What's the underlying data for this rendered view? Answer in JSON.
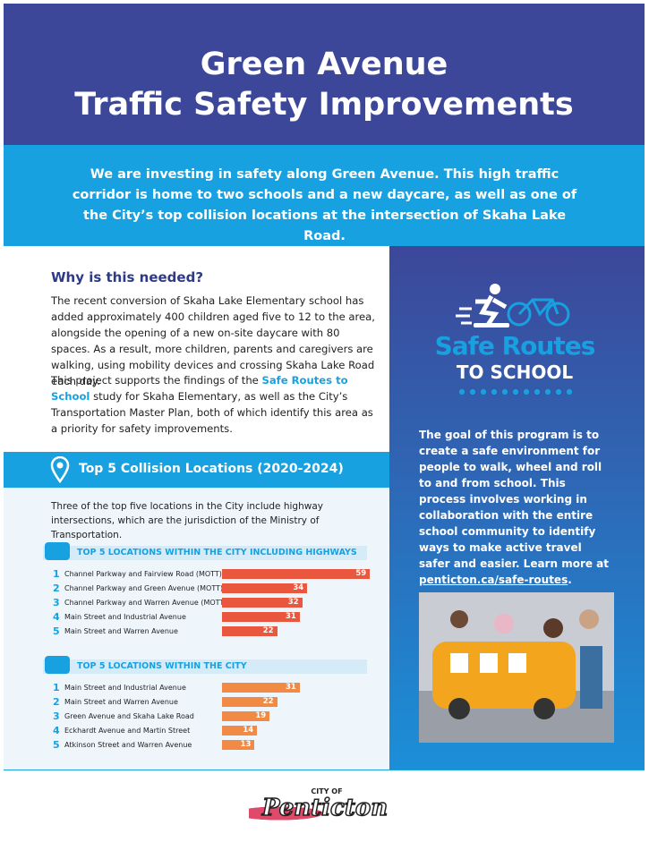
{
  "header": {
    "title_lines": [
      "Green Avenue",
      "Traffic Safety Improvements"
    ]
  },
  "intro": "We are investing in safety along Green Avenue. This high traffic corridor is home to two schools and a new daycare, as well as one of the City’s top collision locations at the intersection of Skaha Lake Road.",
  "why": {
    "heading": "Why is this needed?",
    "paragraph1": "The recent conversion of Skaha Lake Elementary school has added approximately 400 children aged five to 12 to the area, alongside the opening of a new on-site daycare with 80 spaces. As a result, more children, parents and caregivers are walking, using mobility devices and crossing Skaha Lake Road each day.",
    "paragraph2": {
      "before": "This project supports the findings of the ",
      "link": "Safe Routes to School",
      "after": " study for Skaha Elementary, as well as the City’s Transportation Master Plan, both of which identify this area as a priority for safety improvements."
    }
  },
  "collisions": {
    "heading": "Top 5 Collision Locations (2020-2024)",
    "note": "Three of the top five locations in the City include highway intersections, which are the jurisdiction of the Ministry of Transportation.",
    "charts": [
      {
        "type": "bar",
        "title": "TOP 5 LOCATIONS WITHIN THE CITY INCLUDING HIGHWAYS",
        "ranks": [
          1,
          2,
          3,
          4,
          5
        ],
        "categories": [
          "Channel Parkway and Fairview Road (MOTT)",
          "Channel Parkway and Green Avenue (MOTT)",
          "Channel Parkway and Warren Avenue (MOTT)",
          "Main Street and Industrial Avenue",
          "Main Street and Warren Avenue"
        ],
        "values": [
          59,
          34,
          32,
          31,
          22
        ],
        "color": "#e9573f"
      },
      {
        "type": "bar",
        "title": "TOP 5 LOCATIONS WITHIN THE CITY",
        "ranks": [
          1,
          2,
          3,
          4,
          5
        ],
        "categories": [
          "Main Street and Industrial Avenue",
          "Main Street and Warren Avenue",
          "Green Avenue and Skaha Lake Road",
          "Eckhardt Avenue and Martin Street",
          "Atkinson Street and Warren Avenue"
        ],
        "values": [
          31,
          22,
          19,
          14,
          13
        ],
        "color": "#f08a45"
      }
    ]
  },
  "program": {
    "logo": {
      "line1": "Safe Routes",
      "line2": "TO SCHOOL"
    },
    "text": "The goal of this program is to create a safe environment for people to walk, wheel and roll to and from school. This process involves working in collaboration with the entire school community to identify ways to make active travel safer and easier. Learn more at ",
    "link": "penticton.ca/safe-routes",
    "after": "."
  },
  "footer": {
    "logo_small": "CITY OF",
    "logo_name": "Penticton"
  }
}
